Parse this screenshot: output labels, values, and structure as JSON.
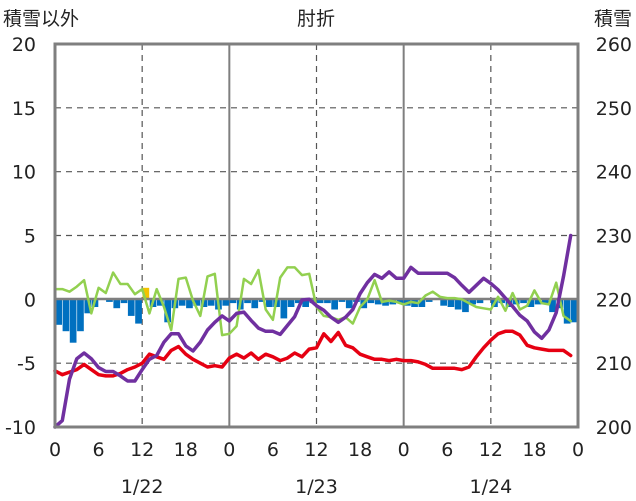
{
  "chart_data": {
    "type": "line",
    "title": "肘折",
    "left_axis": {
      "label": "積雪以外",
      "range": [
        -10,
        20
      ],
      "ticks": [
        "-10",
        "-5",
        "0",
        "5",
        "10",
        "15",
        "20"
      ]
    },
    "right_axis": {
      "label": "積雪",
      "range": [
        200,
        260
      ],
      "ticks": [
        "200",
        "210",
        "220",
        "230",
        "240",
        "250",
        "260"
      ]
    },
    "x_axis": {
      "range": [
        0,
        72
      ],
      "ticks": [
        0,
        6,
        12,
        18,
        24,
        30,
        36,
        42,
        48,
        54,
        60,
        66,
        72
      ],
      "tick_labels": [
        "0",
        "6",
        "12",
        "18",
        "0",
        "6",
        "12",
        "18",
        "0",
        "6",
        "12",
        "18",
        "0"
      ],
      "day_labels": [
        {
          "at": 12,
          "text": "1/22"
        },
        {
          "at": 36,
          "text": "1/23"
        },
        {
          "at": 60,
          "text": "1/24"
        }
      ],
      "solid_grid_at": [
        24,
        48
      ],
      "dashed_grid_at": [
        12,
        36,
        60
      ]
    },
    "grid": {
      "horizontal_dashed_at": [
        -5,
        5,
        10,
        15
      ]
    },
    "colors": {
      "temperature": "#e60012",
      "snow_depth": "#7030a0",
      "sunshine_like": "#92d050",
      "bars_blue": "#0070c0",
      "bars_yellow": "#f2c200"
    },
    "series": [
      {
        "axis": "left",
        "color": "#e60012",
        "values": [
          -5.6,
          -5.9,
          -5.7,
          -5.5,
          -5.1,
          -5.5,
          -5.9,
          -6.0,
          -6.0,
          -5.8,
          -5.5,
          -5.3,
          -5.0,
          -4.3,
          -4.5,
          -4.7,
          -4.0,
          -3.7,
          -4.3,
          -4.7,
          -5.0,
          -5.3,
          -5.2,
          -5.3,
          -4.6,
          -4.3,
          -4.6,
          -4.2,
          -4.7,
          -4.3,
          -4.5,
          -4.8,
          -4.6,
          -4.2,
          -4.5,
          -3.9,
          -3.8,
          -2.7,
          -3.3,
          -2.6,
          -3.6,
          -3.8,
          -4.3,
          -4.5,
          -4.7,
          -4.7,
          -4.8,
          -4.7,
          -4.8,
          -4.8,
          -4.9,
          -5.1,
          -5.4,
          -5.4,
          -5.4,
          -5.4,
          -5.5,
          -5.3,
          -4.5,
          -3.8,
          -3.2,
          -2.7,
          -2.5,
          -2.5,
          -2.8,
          -3.6,
          -3.8,
          -3.9,
          -4.0,
          -4.0,
          -4.0,
          -4.4
        ]
      },
      {
        "axis": "right",
        "color": "#7030a0",
        "values": [
          200.0,
          201.0,
          207.5,
          210.7,
          211.6,
          210.7,
          209.3,
          208.7,
          208.7,
          208.0,
          207.2,
          207.2,
          209.0,
          210.6,
          211.2,
          213.3,
          214.6,
          214.6,
          212.7,
          211.9,
          213.3,
          215.2,
          216.4,
          217.4,
          216.6,
          217.8,
          218.0,
          216.7,
          215.5,
          215.0,
          215.0,
          214.5,
          215.9,
          217.3,
          219.9,
          220.0,
          219.0,
          218.3,
          217.2,
          216.4,
          217.2,
          218.4,
          220.9,
          222.6,
          223.9,
          223.3,
          224.3,
          223.3,
          223.3,
          225.0,
          224.1,
          224.1,
          224.1,
          224.1,
          224.1,
          223.4,
          222.2,
          221.1,
          222.2,
          223.3,
          222.5,
          221.5,
          220.2,
          218.9,
          217.5,
          216.6,
          214.9,
          213.9,
          215.2,
          217.9,
          223.6,
          230.0
        ]
      },
      {
        "axis": "left",
        "color": "#92d050",
        "values": [
          0.8,
          0.8,
          0.6,
          1.0,
          1.5,
          -1.1,
          0.9,
          0.5,
          2.1,
          1.2,
          1.2,
          0.4,
          0.8,
          -1.1,
          0.8,
          -0.6,
          -2.4,
          1.6,
          1.7,
          -0.1,
          -1.3,
          1.8,
          2.0,
          -2.8,
          -2.7,
          -2.1,
          1.6,
          1.2,
          2.3,
          -0.8,
          -1.6,
          1.7,
          2.5,
          2.5,
          1.9,
          2.0,
          -0.6,
          -1.3,
          -1.4,
          -1.6,
          -1.4,
          -1.9,
          -0.6,
          0.0,
          1.5,
          -0.2,
          -0.1,
          -0.2,
          -0.4,
          -0.2,
          -0.3,
          0.3,
          0.6,
          0.2,
          0.1,
          0.1,
          0.0,
          -0.3,
          -0.6,
          -0.7,
          -0.8,
          0.2,
          -0.9,
          0.5,
          -0.8,
          -0.5,
          0.7,
          -0.3,
          -0.4,
          1.3,
          -1.3,
          -1.7
        ]
      }
    ],
    "bars": {
      "axis": "left",
      "values": [
        -2.0,
        -2.5,
        -3.4,
        -2.5,
        -1.1,
        -0.6,
        0.0,
        -0.2,
        -0.7,
        -0.3,
        -1.3,
        -1.9,
        0.9,
        -0.6,
        -0.5,
        -1.8,
        -0.7,
        -0.5,
        -0.7,
        -0.5,
        -0.6,
        -0.5,
        -0.8,
        -0.5,
        -0.3,
        -0.8,
        -0.3,
        -0.7,
        -0.2,
        -0.6,
        -0.6,
        -1.5,
        -0.6,
        -0.3,
        -0.6,
        -0.3,
        -0.3,
        -0.3,
        -0.8,
        -0.2,
        -0.7,
        -0.2,
        -0.7,
        -0.3,
        -0.4,
        -0.5,
        -0.4,
        -0.3,
        -0.5,
        -0.6,
        -0.6,
        -0.2,
        0.0,
        -0.5,
        -0.6,
        -0.8,
        -1.0,
        -0.4,
        -0.3,
        0.0,
        -0.6,
        -0.3,
        -0.6,
        -0.4,
        -0.3,
        -0.6,
        -0.4,
        -0.4,
        -1.0,
        -0.7,
        -1.9,
        -1.8
      ],
      "yellow_index": 12
    }
  }
}
